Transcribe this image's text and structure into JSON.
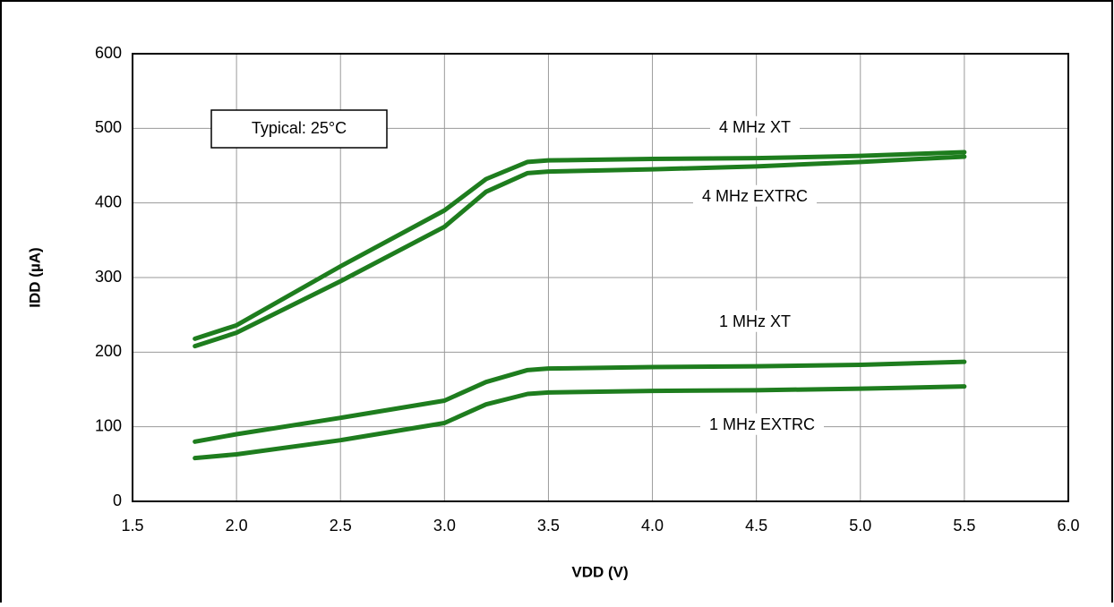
{
  "chart_data": {
    "type": "line",
    "annotation": "Typical: 25°C",
    "x_label": "VDD (V)",
    "y_label": "IDD (µA)",
    "x": [
      1.8,
      2.0,
      2.5,
      3.0,
      3.2,
      3.4,
      3.5,
      4.0,
      4.5,
      5.0,
      5.5
    ],
    "series": [
      {
        "name": "4 MHz XT",
        "color": "#1e7d1e",
        "values": [
          218,
          236,
          315,
          390,
          432,
          455,
          457,
          459,
          460,
          463,
          468
        ]
      },
      {
        "name": "4 MHz EXTRC",
        "color": "#1e7d1e",
        "values": [
          208,
          226,
          295,
          368,
          415,
          440,
          442,
          445,
          449,
          455,
          462
        ]
      },
      {
        "name": "1 MHz XT",
        "color": "#1e7d1e",
        "values": [
          80,
          90,
          112,
          135,
          160,
          176,
          178,
          180,
          181,
          183,
          187
        ]
      },
      {
        "name": "1 MHz EXTRC",
        "color": "#1e7d1e",
        "values": [
          58,
          63,
          82,
          105,
          130,
          144,
          146,
          148,
          149,
          151,
          154
        ]
      }
    ],
    "xlim": [
      1.5,
      6.0
    ],
    "xticks": [
      1.5,
      {
        "value": 2,
        "label": "2.0"
      },
      2.5,
      {
        "value": 3,
        "label": "3.0"
      },
      3.5,
      {
        "value": 4,
        "label": "4.0"
      },
      4.5,
      {
        "value": 5,
        "label": "5.0"
      },
      5.5,
      {
        "value": 6,
        "label": "6.0"
      }
    ],
    "ylim": [
      0,
      600
    ],
    "yticks": [
      0,
      100,
      200,
      300,
      400,
      500,
      600
    ],
    "grid": true
  }
}
